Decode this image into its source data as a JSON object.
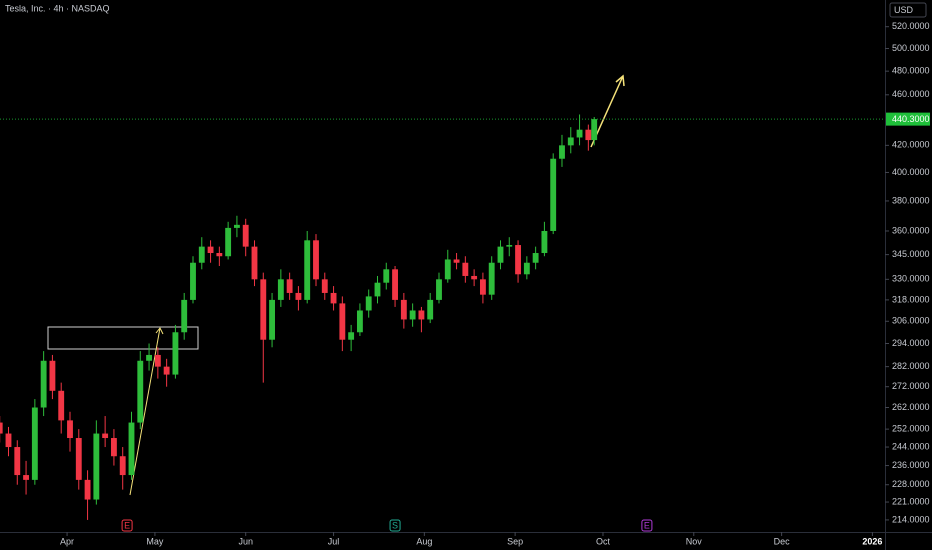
{
  "chart_data": {
    "type": "candlestick",
    "title": "Tesla, Inc. · 4h · NASDAQ",
    "currency": "USD",
    "log_scale": true,
    "up_color": "#2ebd3b",
    "down_color": "#f23645",
    "candles": {
      "x": [
        8,
        11,
        14,
        17,
        20,
        23,
        26,
        29,
        32,
        35,
        38,
        41,
        44,
        47,
        50,
        53,
        56,
        59,
        62,
        65,
        68,
        71,
        74,
        77,
        80,
        83,
        86,
        89,
        92,
        95,
        98,
        101,
        104,
        107,
        110,
        113,
        116,
        119,
        122,
        125,
        128,
        131,
        134,
        137,
        140,
        143,
        146,
        149,
        152,
        155,
        158,
        161,
        164,
        167,
        170,
        173,
        176,
        179,
        182,
        185,
        188,
        191,
        194,
        197,
        200,
        203,
        206,
        209,
        211
      ],
      "open": [
        255,
        250,
        244,
        232,
        230,
        262,
        285,
        270,
        256,
        248,
        230,
        222,
        250,
        248,
        240,
        232,
        255,
        285,
        288,
        282,
        278,
        300,
        318,
        340,
        350,
        346,
        344,
        362,
        364,
        350,
        330,
        296,
        318,
        330,
        322,
        318,
        354,
        330,
        322,
        316,
        296,
        300,
        312,
        320,
        328,
        336,
        318,
        307,
        312,
        307,
        318,
        330,
        342,
        340,
        332,
        330,
        321,
        340,
        350,
        351,
        333,
        340,
        346,
        360,
        410,
        420,
        426,
        432,
        424
      ],
      "high": [
        258,
        253,
        247,
        238,
        266,
        290,
        288,
        274,
        260,
        252,
        234,
        256,
        258,
        252,
        244,
        260,
        290,
        294,
        292,
        286,
        304,
        322,
        344,
        356,
        354,
        350,
        366,
        370,
        368,
        354,
        334,
        322,
        336,
        334,
        326,
        360,
        358,
        334,
        326,
        320,
        304,
        316,
        324,
        332,
        340,
        338,
        322,
        316,
        314,
        322,
        334,
        348,
        346,
        344,
        336,
        334,
        344,
        354,
        356,
        354,
        344,
        350,
        366,
        414,
        428,
        434,
        444,
        436,
        442
      ],
      "low": [
        246,
        240,
        228,
        224,
        228,
        258,
        266,
        250,
        242,
        226,
        214,
        220,
        244,
        236,
        226,
        230,
        252,
        280,
        276,
        272,
        276,
        296,
        316,
        336,
        340,
        338,
        342,
        356,
        344,
        326,
        274,
        292,
        314,
        318,
        312,
        316,
        326,
        318,
        312,
        290,
        290,
        298,
        308,
        316,
        324,
        314,
        302,
        303,
        300,
        305,
        316,
        328,
        336,
        328,
        326,
        316,
        318,
        336,
        344,
        328,
        330,
        336,
        344,
        358,
        404,
        414,
        420,
        416,
        420
      ],
      "close": [
        250,
        244,
        232,
        230,
        262,
        285,
        270,
        256,
        248,
        230,
        222,
        250,
        248,
        240,
        232,
        255,
        285,
        288,
        282,
        278,
        300,
        318,
        340,
        350,
        346,
        344,
        362,
        364,
        350,
        330,
        296,
        318,
        330,
        322,
        318,
        354,
        330,
        322,
        316,
        296,
        300,
        312,
        320,
        328,
        336,
        318,
        307,
        312,
        307,
        318,
        330,
        342,
        340,
        332,
        330,
        321,
        340,
        350,
        351,
        333,
        340,
        346,
        360,
        410,
        420,
        426,
        432,
        424,
        440.3
      ]
    },
    "last_price": {
      "value": 440.3,
      "label": "440.3000",
      "color": "#1fbf3a"
    },
    "xlim": [
      8.1,
      310.3
    ],
    "xticks": [
      {
        "value": 31,
        "label": "Apr"
      },
      {
        "value": 61,
        "label": "May"
      },
      {
        "value": 92,
        "label": "Jun"
      },
      {
        "value": 122,
        "label": "Jul"
      },
      {
        "value": 153,
        "label": "Aug"
      },
      {
        "value": 184,
        "label": "Sep"
      },
      {
        "value": 214,
        "label": "Oct"
      },
      {
        "value": 245,
        "label": "Nov"
      },
      {
        "value": 275,
        "label": "Dec"
      },
      {
        "value": 306,
        "label": "2026"
      }
    ],
    "ylim": [
      209.4,
      545.6
    ],
    "yticks": [
      {
        "value": 214,
        "label": "214.0000"
      },
      {
        "value": 221,
        "label": "221.0000"
      },
      {
        "value": 228,
        "label": "228.0000"
      },
      {
        "value": 236,
        "label": "236.0000"
      },
      {
        "value": 244,
        "label": "244.0000"
      },
      {
        "value": 252,
        "label": "252.0000"
      },
      {
        "value": 262,
        "label": "262.0000"
      },
      {
        "value": 272,
        "label": "272.0000"
      },
      {
        "value": 282,
        "label": "282.0000"
      },
      {
        "value": 294,
        "label": "294.0000"
      },
      {
        "value": 306,
        "label": "306.0000"
      },
      {
        "value": 318,
        "label": "318.0000"
      },
      {
        "value": 330,
        "label": "330.0000"
      },
      {
        "value": 345,
        "label": "345.0000"
      },
      {
        "value": 360,
        "label": "360.0000"
      },
      {
        "value": 380,
        "label": "380.0000"
      },
      {
        "value": 400,
        "label": "400.0000"
      },
      {
        "value": 420,
        "label": "420.0000"
      },
      {
        "value": 460,
        "label": "460.0000"
      },
      {
        "value": 480,
        "label": "480.0000"
      },
      {
        "value": 500,
        "label": "500.0000"
      },
      {
        "value": 520,
        "label": "520.0000"
      }
    ],
    "events": [
      {
        "label": "E",
        "x": 51.5,
        "color": "#f23645"
      },
      {
        "label": "S",
        "x": 143,
        "color": "#22ab94"
      },
      {
        "label": "E",
        "x": 229,
        "color": "#b03bd8"
      }
    ]
  }
}
